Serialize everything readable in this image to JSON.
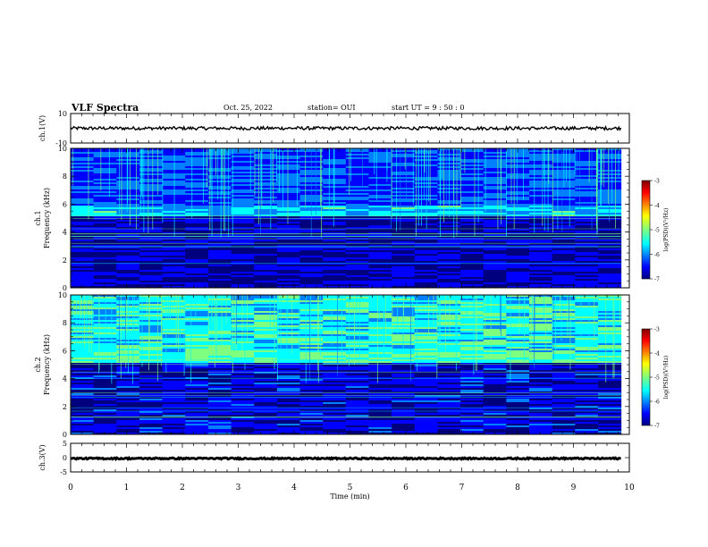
{
  "header": {
    "title": "VLF Spectra",
    "date": "Oct. 25, 2022",
    "station": "station= OUI",
    "start": "start  UT =   9 : 50 : 0"
  },
  "chart_data": [
    {
      "type": "line",
      "panel": "ch1-waveform",
      "ylabel": "ch.1(V)",
      "ylim": [
        -10,
        10
      ],
      "yticks": [
        "10",
        "-10"
      ],
      "x": [
        0,
        9.85
      ],
      "level": 0,
      "note_values": [
        0,
        0
      ]
    },
    {
      "type": "heatmap",
      "panel": "ch1-spectrogram",
      "ylabel": "ch.1\nFrequency (kHz)",
      "ylim": [
        0,
        10
      ],
      "yticks": [
        "0",
        "2",
        "4",
        "6",
        "8",
        "10"
      ],
      "colorbar": {
        "label": "log(PSD)(V²/Hz)",
        "ticks": [
          "-3",
          "-4",
          "-5",
          "-6",
          "-7"
        ],
        "range": [
          -7,
          -3
        ]
      }
    },
    {
      "type": "heatmap",
      "panel": "ch2-spectrogram",
      "ylabel": "ch.2\nFrequency (kHz)",
      "ylim": [
        0,
        10
      ],
      "yticks": [
        "0",
        "2",
        "4",
        "6",
        "8",
        "10"
      ],
      "colorbar": {
        "label": "log(PSD)(V²/Hz)",
        "ticks": [
          "-3",
          "-4",
          "-5",
          "-6",
          "-7"
        ],
        "range": [
          -7,
          -3
        ]
      }
    },
    {
      "type": "line",
      "panel": "ch3-waveform",
      "ylabel": "ch.3(V)",
      "ylim": [
        -5,
        5
      ],
      "yticks": [
        "5",
        "0",
        "-5"
      ],
      "x": [
        0,
        9.85
      ],
      "level": -0.3
    }
  ],
  "xaxis": {
    "label": "Time  (min)",
    "ticks": [
      "0",
      "1",
      "2",
      "3",
      "4",
      "5",
      "6",
      "7",
      "8",
      "9",
      "10"
    ],
    "xlim": [
      0,
      10
    ]
  },
  "colors": {
    "jet": [
      "#00007f",
      "#0000ff",
      "#007fff",
      "#00ffff",
      "#7fff7f",
      "#ffff00",
      "#ff7f00",
      "#ff0000",
      "#7f0000"
    ]
  }
}
